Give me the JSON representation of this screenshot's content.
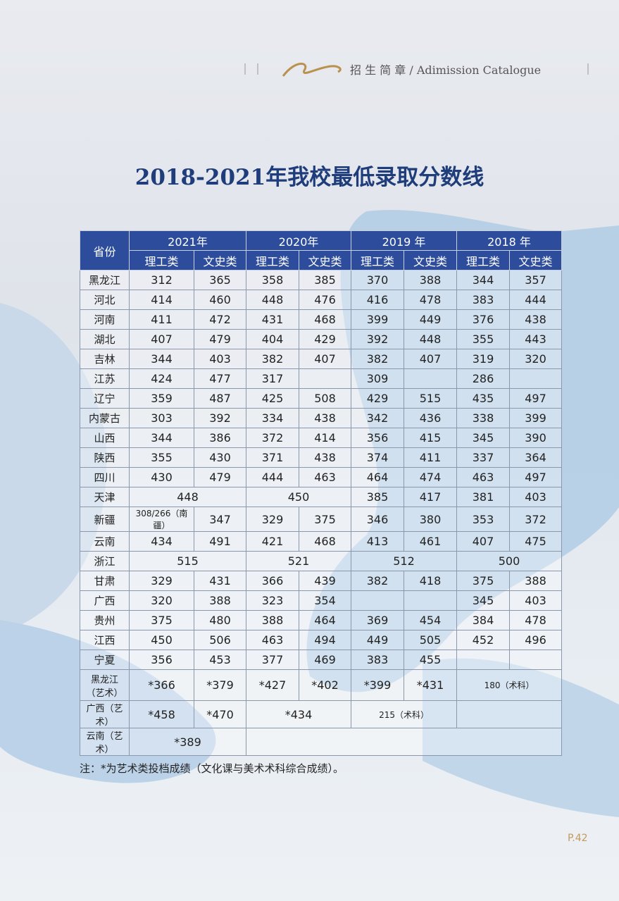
{
  "header": {
    "catalogue": "招 生 简 章 / Adimission Catalogue"
  },
  "title": "2018-2021年我校最低录取分数线",
  "table": {
    "province_header": "省份",
    "years": [
      "2021年",
      "2020年",
      "2019 年",
      "2018 年"
    ],
    "subheaders": [
      "理工类",
      "文史类",
      "理工类",
      "文史类",
      "理工类",
      "文史类",
      "理工类",
      "文史类"
    ],
    "rows": [
      {
        "province": "黑龙江",
        "cells": [
          312,
          365,
          358,
          385,
          370,
          388,
          344,
          357
        ]
      },
      {
        "province": "河北",
        "cells": [
          414,
          460,
          448,
          476,
          416,
          478,
          383,
          444
        ]
      },
      {
        "province": "河南",
        "cells": [
          411,
          472,
          431,
          468,
          399,
          449,
          376,
          438
        ]
      },
      {
        "province": "湖北",
        "cells": [
          407,
          479,
          404,
          429,
          392,
          448,
          355,
          443
        ]
      },
      {
        "province": "吉林",
        "cells": [
          344,
          403,
          382,
          407,
          382,
          407,
          319,
          320
        ]
      },
      {
        "province": "江苏",
        "cells": [
          424,
          477,
          317,
          null,
          309,
          null,
          286,
          null
        ]
      },
      {
        "province": "辽宁",
        "cells": [
          359,
          487,
          425,
          508,
          429,
          515,
          435,
          497
        ]
      },
      {
        "province": "内蒙古",
        "cells": [
          303,
          392,
          334,
          438,
          342,
          436,
          338,
          399
        ]
      },
      {
        "province": "山西",
        "cells": [
          344,
          386,
          372,
          414,
          356,
          415,
          345,
          390
        ]
      },
      {
        "province": "陕西",
        "cells": [
          355,
          430,
          371,
          438,
          374,
          411,
          337,
          364
        ]
      },
      {
        "province": "四川",
        "cells": [
          430,
          479,
          444,
          463,
          464,
          474,
          463,
          497
        ]
      },
      {
        "province": "天津",
        "cells": [
          448,
          450,
          385,
          417,
          381,
          403
        ]
      },
      {
        "province": "新疆",
        "cells": [
          "308/266（南疆）",
          347,
          329,
          375,
          346,
          380,
          353,
          372
        ]
      },
      {
        "province": "云南",
        "cells": [
          434,
          491,
          421,
          468,
          413,
          461,
          407,
          475
        ]
      },
      {
        "province": "浙江",
        "cells": [
          515,
          521,
          512,
          500
        ]
      },
      {
        "province": "甘肃",
        "cells": [
          329,
          431,
          366,
          439,
          382,
          418,
          375,
          388
        ]
      },
      {
        "province": "广西",
        "cells": [
          320,
          388,
          323,
          354,
          null,
          null,
          345,
          403
        ]
      },
      {
        "province": "贵州",
        "cells": [
          375,
          480,
          388,
          464,
          369,
          454,
          384,
          478
        ]
      },
      {
        "province": "江西",
        "cells": [
          450,
          506,
          463,
          494,
          449,
          505,
          452,
          496
        ]
      },
      {
        "province": "宁夏",
        "cells": [
          356,
          453,
          377,
          469,
          383,
          455,
          null,
          null
        ]
      },
      {
        "province": "黑龙江\n（艺术）",
        "cells": [
          "*366",
          "*379",
          "*427",
          "*402",
          "*399",
          "*431",
          "180（术科）"
        ]
      },
      {
        "province": "广西（艺术）",
        "cells": [
          "*458",
          "*470",
          "*434",
          "215（术科）",
          null
        ]
      },
      {
        "province": "云南（艺术）",
        "cells": [
          "*389",
          null
        ]
      }
    ]
  },
  "note": "注：*为艺术类投档成绩（文化课与美术术科综合成绩）。",
  "page_number": "P.42"
}
